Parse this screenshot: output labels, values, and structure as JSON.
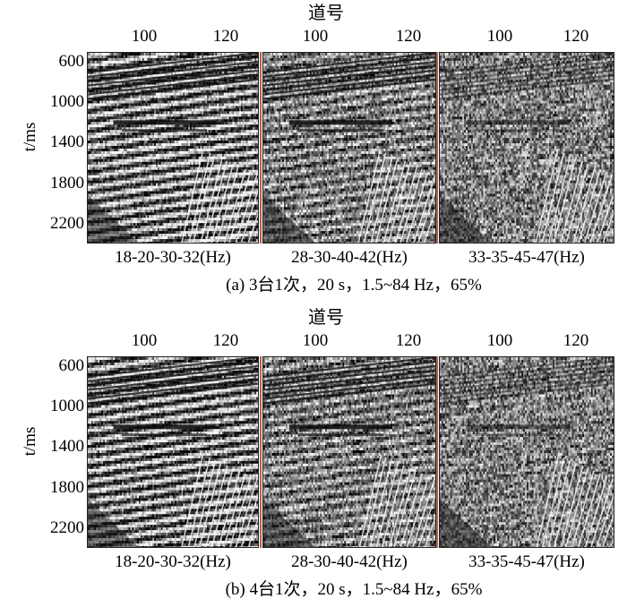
{
  "figure_a": {
    "axis_top_label": "道号",
    "x_ticks": [
      "100",
      "120"
    ],
    "y_title": "t/ms",
    "y_ticks": [
      "600",
      "1000",
      "1400",
      "1800",
      "2200"
    ],
    "panels": [
      {
        "label": "18-20-30-32(Hz)"
      },
      {
        "label": "28-30-40-42(Hz)"
      },
      {
        "label": "33-35-45-47(Hz)"
      }
    ],
    "caption": "(a) 3台1次，20 s，1.5~84 Hz，65%"
  },
  "figure_b": {
    "axis_top_label": "道号",
    "x_ticks": [
      "100",
      "120"
    ],
    "y_title": "t/ms",
    "y_ticks": [
      "600",
      "1000",
      "1400",
      "1800",
      "2200"
    ],
    "panels": [
      {
        "label": "18-20-30-32(Hz)"
      },
      {
        "label": "28-30-40-42(Hz)"
      },
      {
        "label": "33-35-45-47(Hz)"
      }
    ],
    "caption": "(b) 4台1次，20 s，1.5~84 Hz，65%"
  }
}
